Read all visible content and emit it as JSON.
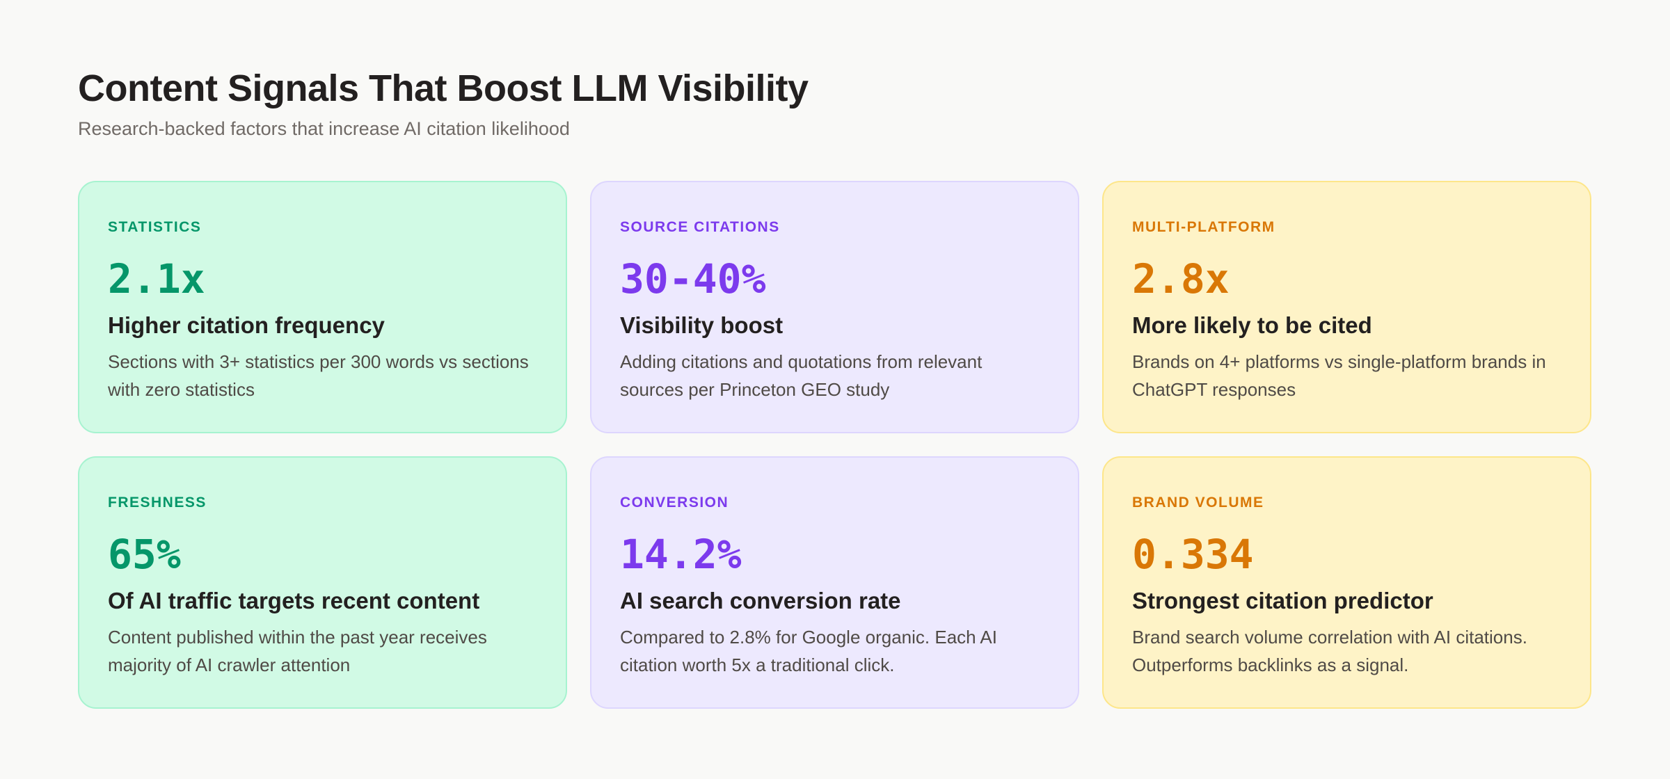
{
  "header": {
    "title": "Content Signals That Boost LLM Visibility",
    "subtitle": "Research-backed factors that increase AI citation likelihood"
  },
  "colors": {
    "green": "#059669",
    "purple": "#7c3aed",
    "amber": "#d97706",
    "background": "#f9f9f7"
  },
  "cards": [
    {
      "label": "STATISTICS",
      "value": "2.1x",
      "heading": "Higher citation frequency",
      "description": "Sections with 3+ statistics per 300 words vs sections with zero statistics"
    },
    {
      "label": "SOURCE CITATIONS",
      "value": "30-40%",
      "heading": "Visibility boost",
      "description": "Adding citations and quotations from relevant sources per Princeton GEO study"
    },
    {
      "label": "MULTI-PLATFORM",
      "value": "2.8x",
      "heading": "More likely to be cited",
      "description": "Brands on 4+ platforms vs single-platform brands in ChatGPT responses"
    },
    {
      "label": "FRESHNESS",
      "value": "65%",
      "heading": "Of AI traffic targets recent content",
      "description": "Content published within the past year receives majority of AI crawler attention"
    },
    {
      "label": "CONVERSION",
      "value": "14.2%",
      "heading": "AI search conversion rate",
      "description": "Compared to 2.8% for Google organic. Each AI citation worth 5x a traditional click."
    },
    {
      "label": "BRAND VOLUME",
      "value": "0.334",
      "heading": "Strongest citation predictor",
      "description": "Brand search volume correlation with AI citations. Outperforms backlinks as a signal."
    }
  ]
}
